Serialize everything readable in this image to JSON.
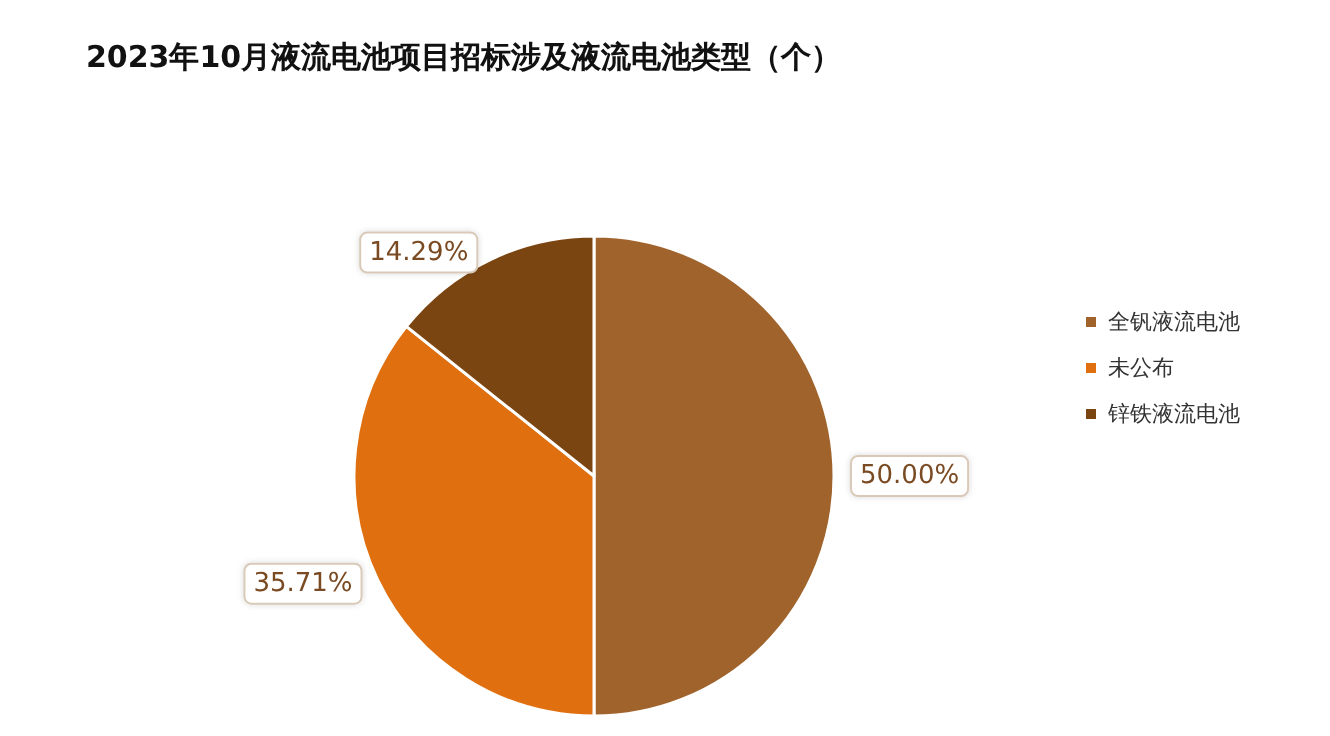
{
  "chart_data": {
    "type": "pie",
    "title": "2023年10月液流电池项目招标涉及液流电池类型（个）",
    "categories": [
      "全钒液流电池",
      "未公布",
      "锌铁液流电池"
    ],
    "values": [
      50,
      35.71,
      14.29
    ],
    "value_labels": [
      "50.00%",
      "35.71%",
      "14.29%"
    ],
    "colors": [
      "#a0632b",
      "#e0700f",
      "#7b4511"
    ],
    "legend": "right"
  }
}
